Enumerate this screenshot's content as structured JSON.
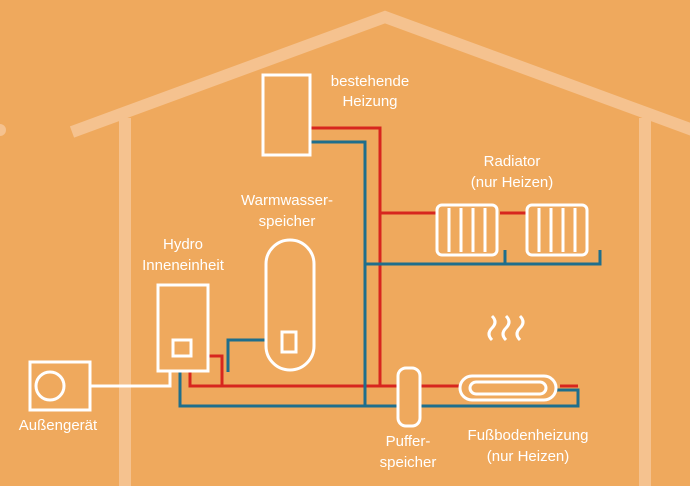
{
  "nodes": [
    {
      "id": "boiler",
      "label": [
        "bestehende",
        "Heizung"
      ]
    },
    {
      "id": "radiator",
      "label": [
        "Radiator",
        "(nur Heizen)"
      ]
    },
    {
      "id": "tank",
      "label": [
        "Warmwasser-",
        "speicher"
      ]
    },
    {
      "id": "hydro",
      "label": [
        "Hydro",
        "Inneneinheit"
      ]
    },
    {
      "id": "outdoor",
      "label": [
        "Außengerät"
      ]
    },
    {
      "id": "buffer",
      "label": [
        "Puffer-",
        "speicher"
      ]
    },
    {
      "id": "floor",
      "label": [
        "Fußbodenheizung",
        "(nur Heizen)"
      ]
    }
  ]
}
